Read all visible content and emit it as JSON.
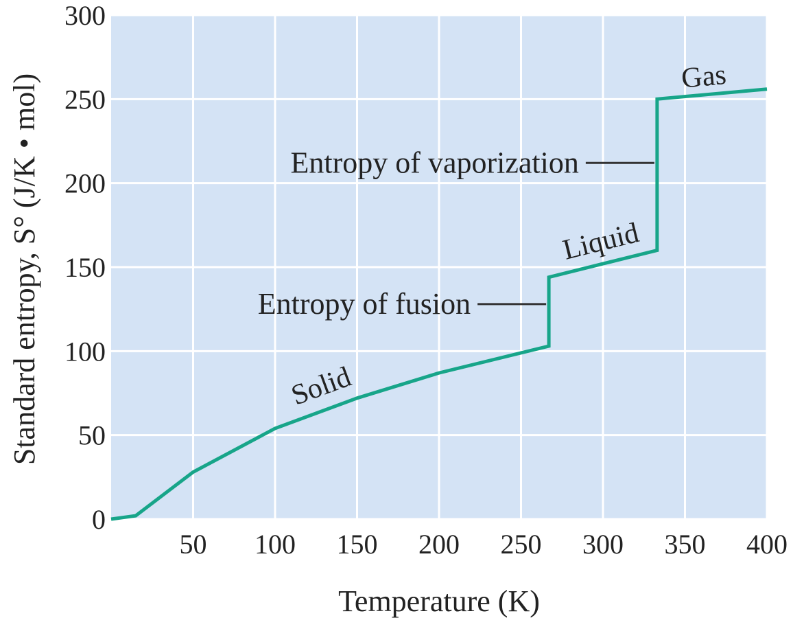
{
  "chart_data": {
    "type": "line",
    "xlabel": "Temperature (K)",
    "ylabel": "Standard entropy, S° (J/K • mol)",
    "xlim": [
      0,
      400
    ],
    "ylim": [
      0,
      300
    ],
    "x_ticks": [
      50,
      100,
      150,
      200,
      250,
      300,
      350,
      400
    ],
    "y_ticks": [
      0,
      50,
      100,
      150,
      200,
      250,
      300
    ],
    "grid": true,
    "colors": {
      "line": "#17a589",
      "plot_bg": "#d4e3f5",
      "grid": "#ffffff",
      "leader": "#333333"
    },
    "series": [
      {
        "x": [
          0,
          15,
          50,
          100,
          150,
          200,
          267,
          267,
          300,
          333,
          333,
          400
        ],
        "y": [
          0,
          2,
          28,
          54,
          72,
          87,
          103,
          144,
          152,
          160,
          250,
          256
        ]
      }
    ],
    "region_labels": [
      {
        "text": "Solid",
        "x": 130,
        "y": 74
      },
      {
        "text": "Liquid",
        "x": 300,
        "y": 160
      },
      {
        "text": "Gas",
        "x": 362,
        "y": 258
      }
    ],
    "annotations": [
      {
        "text": "Entropy of fusion",
        "x": 267,
        "y": 128
      },
      {
        "text": "Entropy of vaporization",
        "x": 333,
        "y": 212
      }
    ]
  }
}
